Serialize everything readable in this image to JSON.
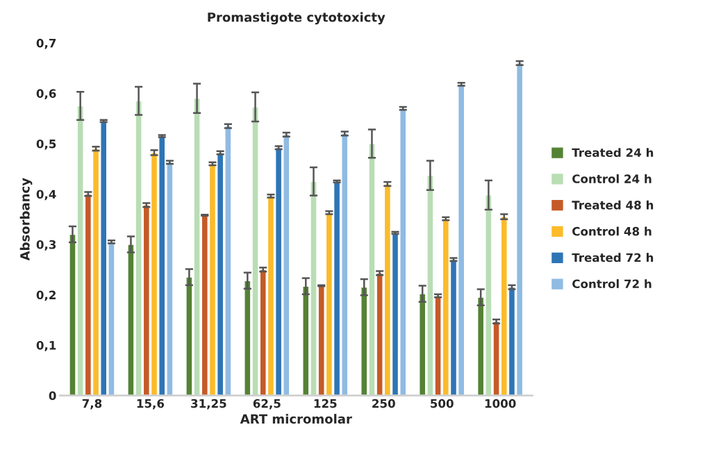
{
  "chart_data": {
    "type": "bar",
    "title": "Promastigote cytotoxicty",
    "xlabel": "ART micromolar",
    "ylabel": "Absorbancy",
    "categories": [
      "7,8",
      "15,6",
      "31,25",
      "62,5",
      "125",
      "250",
      "500",
      "1000"
    ],
    "ylim": [
      0,
      0.7
    ],
    "yticks": [
      {
        "value": 0,
        "label": "0"
      },
      {
        "value": 0.1,
        "label": "0,1"
      },
      {
        "value": 0.2,
        "label": "0,2"
      },
      {
        "value": 0.3,
        "label": "0,3"
      },
      {
        "value": 0.4,
        "label": "0,4"
      },
      {
        "value": 0.5,
        "label": "0,5"
      },
      {
        "value": 0.6,
        "label": "0,6"
      },
      {
        "value": 0.7,
        "label": "0,7"
      }
    ],
    "grid": false,
    "legend": "right",
    "series": [
      {
        "name": "Treated 24 h",
        "color": "#548235",
        "values": [
          0.32,
          0.3,
          0.235,
          0.228,
          0.217,
          0.215,
          0.202,
          0.195
        ],
        "errors": [
          0.016,
          0.016,
          0.016,
          0.016,
          0.016,
          0.016,
          0.016,
          0.016
        ]
      },
      {
        "name": "Control 24 h",
        "color": "#b9ddb4",
        "values": [
          0.575,
          0.585,
          0.59,
          0.573,
          0.425,
          0.5,
          0.437,
          0.398
        ],
        "errors": [
          0.028,
          0.028,
          0.029,
          0.029,
          0.028,
          0.028,
          0.029,
          0.029
        ]
      },
      {
        "name": "Treated 48 h",
        "color": "#c55a28",
        "values": [
          0.4,
          0.378,
          0.358,
          0.25,
          0.218,
          0.243,
          0.198,
          0.147
        ],
        "errors": [
          0.004,
          0.004,
          0.001,
          0.004,
          0.001,
          0.004,
          0.003,
          0.004
        ]
      },
      {
        "name": "Control 48 h",
        "color": "#fbbb2a",
        "values": [
          0.49,
          0.482,
          0.46,
          0.396,
          0.363,
          0.42,
          0.351,
          0.355
        ],
        "errors": [
          0.004,
          0.005,
          0.003,
          0.003,
          0.003,
          0.004,
          0.003,
          0.005
        ]
      },
      {
        "name": "Treated 72 h",
        "color": "#2e75b6",
        "values": [
          0.545,
          0.515,
          0.482,
          0.492,
          0.425,
          0.323,
          0.27,
          0.215
        ],
        "errors": [
          0.002,
          0.002,
          0.003,
          0.003,
          0.002,
          0.002,
          0.003,
          0.004
        ]
      },
      {
        "name": "Control 72 h",
        "color": "#8fbbe2",
        "values": [
          0.305,
          0.463,
          0.535,
          0.518,
          0.52,
          0.57,
          0.618,
          0.66
        ],
        "errors": [
          0.003,
          0.003,
          0.004,
          0.004,
          0.004,
          0.003,
          0.003,
          0.004
        ]
      }
    ]
  }
}
